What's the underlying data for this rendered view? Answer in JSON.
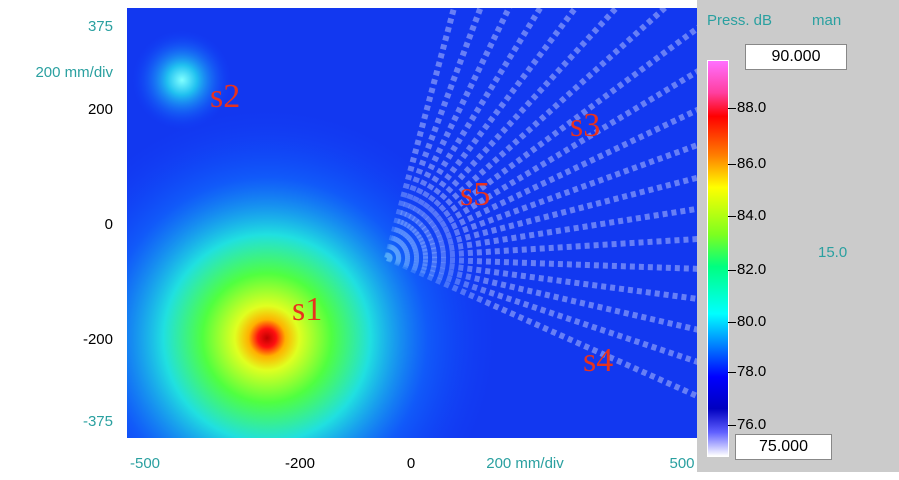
{
  "plot": {
    "y_axis_labels": [
      "375",
      "200 mm/div",
      "200",
      "0",
      "-200",
      "-375"
    ],
    "x_axis_labels": [
      "-500",
      "-200",
      "0",
      "200 mm/div",
      "500"
    ],
    "sources": [
      "s1",
      "s2",
      "s3",
      "s4",
      "s5"
    ]
  },
  "colorbar": {
    "title": "Press. dB",
    "mode": "man",
    "max": "90.000",
    "min": "75.000",
    "ticks": [
      "88.0",
      "86.0",
      "84.0",
      "82.0",
      "80.0",
      "78.0",
      "76.0"
    ],
    "range": "15.0"
  }
}
